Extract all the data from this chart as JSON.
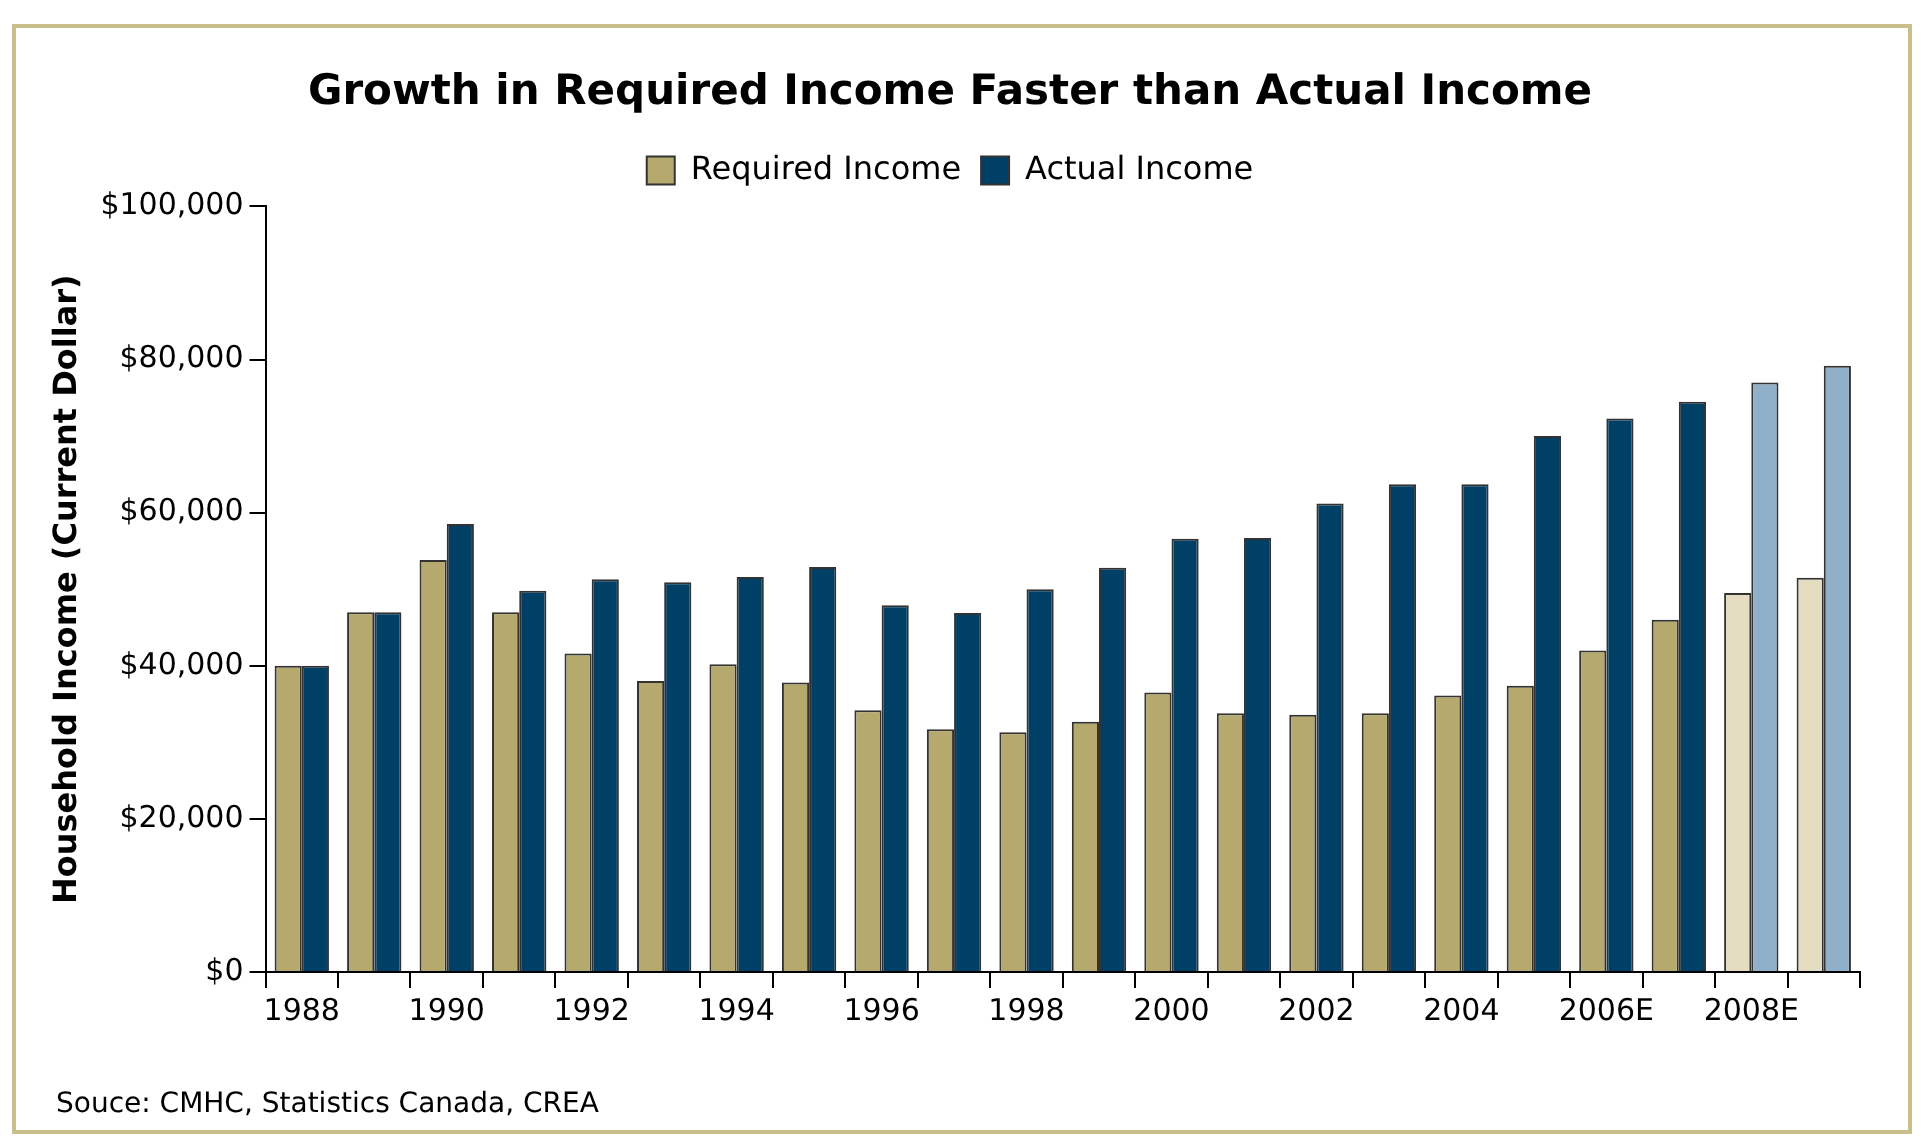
{
  "chart_data": {
    "type": "bar",
    "title": "Growth in Required Income Faster than Actual Income",
    "ylabel": "Household Income (Current Dollar)",
    "categories": [
      "1988",
      null,
      "1990",
      null,
      "1992",
      null,
      "1994",
      null,
      "1996",
      null,
      "1998",
      null,
      "2000",
      null,
      "2002",
      null,
      "2004",
      null,
      "2006E",
      null,
      "2008E",
      null
    ],
    "series": [
      {
        "name": "Required Income",
        "color": "#b5a96e",
        "colors": [
          "#b5a96e",
          "#b5a96e",
          "#b5a96e",
          "#b5a96e",
          "#b5a96e",
          "#b5a96e",
          "#b5a96e",
          "#b5a96e",
          "#b5a96e",
          "#b5a96e",
          "#b5a96e",
          "#b5a96e",
          "#b5a96e",
          "#b5a96e",
          "#b5a96e",
          "#b5a96e",
          "#b5a96e",
          "#b5a96e",
          "#b5a96e",
          "#b5a96e",
          "#e4dcc0",
          "#e4dcc0"
        ],
        "values": [
          40000,
          47000,
          53800,
          47000,
          41600,
          38000,
          40200,
          37800,
          34200,
          31700,
          31300,
          32700,
          36500,
          33800,
          33600,
          33800,
          36100,
          37400,
          42000,
          46000,
          49500,
          51500
        ]
      },
      {
        "name": "Actual Income",
        "color": "#003f66",
        "colors": [
          "#003f66",
          "#003f66",
          "#003f66",
          "#003f66",
          "#003f66",
          "#003f66",
          "#003f66",
          "#003f66",
          "#003f66",
          "#003f66",
          "#003f66",
          "#003f66",
          "#003f66",
          "#003f66",
          "#003f66",
          "#003f66",
          "#003f66",
          "#003f66",
          "#003f66",
          "#003f66",
          "#8fb0c8",
          "#8fb0c8"
        ],
        "values": [
          40000,
          47000,
          58500,
          49800,
          51300,
          50900,
          51600,
          52900,
          47900,
          46900,
          50000,
          52800,
          56600,
          56700,
          61200,
          63700,
          63700,
          70000,
          72300,
          74500,
          77000,
          79200
        ]
      }
    ],
    "ylim": [
      0,
      100000
    ],
    "yticks": [
      {
        "value": 0,
        "label": "$0"
      },
      {
        "value": 20000,
        "label": "$20,000"
      },
      {
        "value": 40000,
        "label": "$40,000"
      },
      {
        "value": 60000,
        "label": "$60,000"
      },
      {
        "value": 80000,
        "label": "$80,000"
      },
      {
        "value": 100000,
        "label": "$100,000"
      }
    ],
    "grid": false,
    "legend": "top",
    "annotations": [
      "Souce: CMHC, Statistics Canada, CREA"
    ]
  }
}
